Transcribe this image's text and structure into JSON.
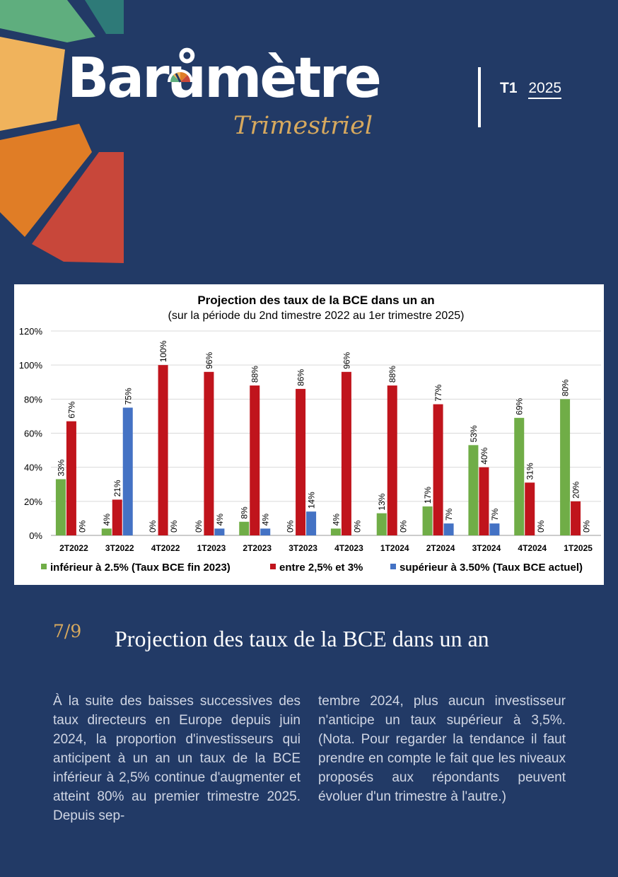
{
  "header": {
    "logo_word": "Barometre",
    "logo_word_display": "Barůmètre",
    "logo_sub": "Trimestriel",
    "quarter": "T1",
    "year": "2025"
  },
  "colors": {
    "background": "#223a66",
    "accent_gold": "#d7a95e",
    "series_green": "#70ad47",
    "series_red": "#c0141c",
    "series_blue": "#4472c4"
  },
  "chart_data": {
    "type": "bar",
    "title": "Projection des taux de la BCE dans un an",
    "subtitle": "(sur la période du 2nd timestre 2022 au 1er trimestre 2025)",
    "categories": [
      "2T2022",
      "3T2022",
      "4T2022",
      "1T2023",
      "2T2023",
      "3T2023",
      "4T2023",
      "1T2024",
      "2T2024",
      "3T2024",
      "4T2024",
      "1T2025"
    ],
    "series": [
      {
        "name": "inférieur à 2.5% (Taux BCE fin 2023)",
        "color": "#70ad47",
        "values": [
          33,
          4,
          0,
          0,
          8,
          0,
          4,
          13,
          17,
          53,
          69,
          80
        ]
      },
      {
        "name": "entre 2,5% et 3%",
        "color": "#c0141c",
        "values": [
          67,
          21,
          100,
          96,
          88,
          86,
          96,
          88,
          77,
          40,
          31,
          20
        ]
      },
      {
        "name": "supérieur à 3.50% (Taux BCE actuel)",
        "color": "#4472c4",
        "values": [
          0,
          75,
          0,
          4,
          4,
          14,
          0,
          0,
          7,
          7,
          0,
          0
        ]
      }
    ],
    "yticks": [
      "0%",
      "20%",
      "40%",
      "60%",
      "80%",
      "100%",
      "120%"
    ],
    "ylim": [
      0,
      120
    ],
    "grid": true,
    "legend": "bottom"
  },
  "section": {
    "page_number": "7/9",
    "title": "Projection des taux de la BCE dans un an"
  },
  "body": {
    "col1": "À la suite des baisses successives des taux directeurs en Europe depuis juin 2024, la proportion d'investisseurs qui anticipent à un an un taux de la BCE inférieur à 2,5% continue d'augmenter et atteint 80% au premier trimestre 2025. Depuis sep-",
    "col2": "tembre 2024, plus aucun investisseur n'anticipe un taux supérieur à 3,5%. (Nota. Pour regarder la tendance il faut prendre en compte le fait que les niveaux proposés aux répondants peuvent évoluer d'un trimestre à l'autre.)"
  }
}
